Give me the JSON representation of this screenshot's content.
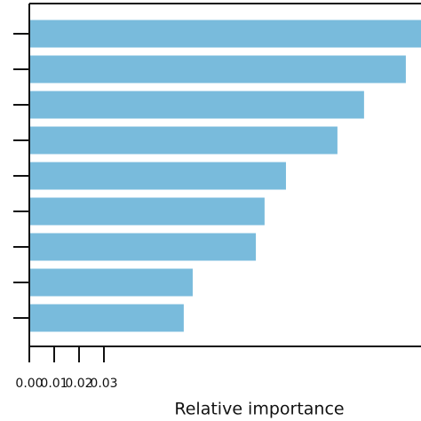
{
  "chart_data": {
    "type": "barh",
    "xlabel": "Relative importance",
    "categories": [
      null,
      null,
      null,
      null,
      null,
      null,
      null,
      null,
      null
    ],
    "values": [
      0.1575,
      0.1514,
      0.1346,
      0.1239,
      0.1032,
      0.0946,
      0.0911,
      0.0657,
      0.0621
    ],
    "color": "#79bbdc",
    "xlim": [
      0,
      0.1575
    ],
    "xticks": [
      {
        "value": 0,
        "label": "0.00"
      },
      {
        "value": 0.01,
        "label": "0.01"
      },
      {
        "value": 0.02,
        "label": "0.02"
      },
      {
        "value": 0.03,
        "label": "0.03"
      }
    ],
    "grid": false
  }
}
